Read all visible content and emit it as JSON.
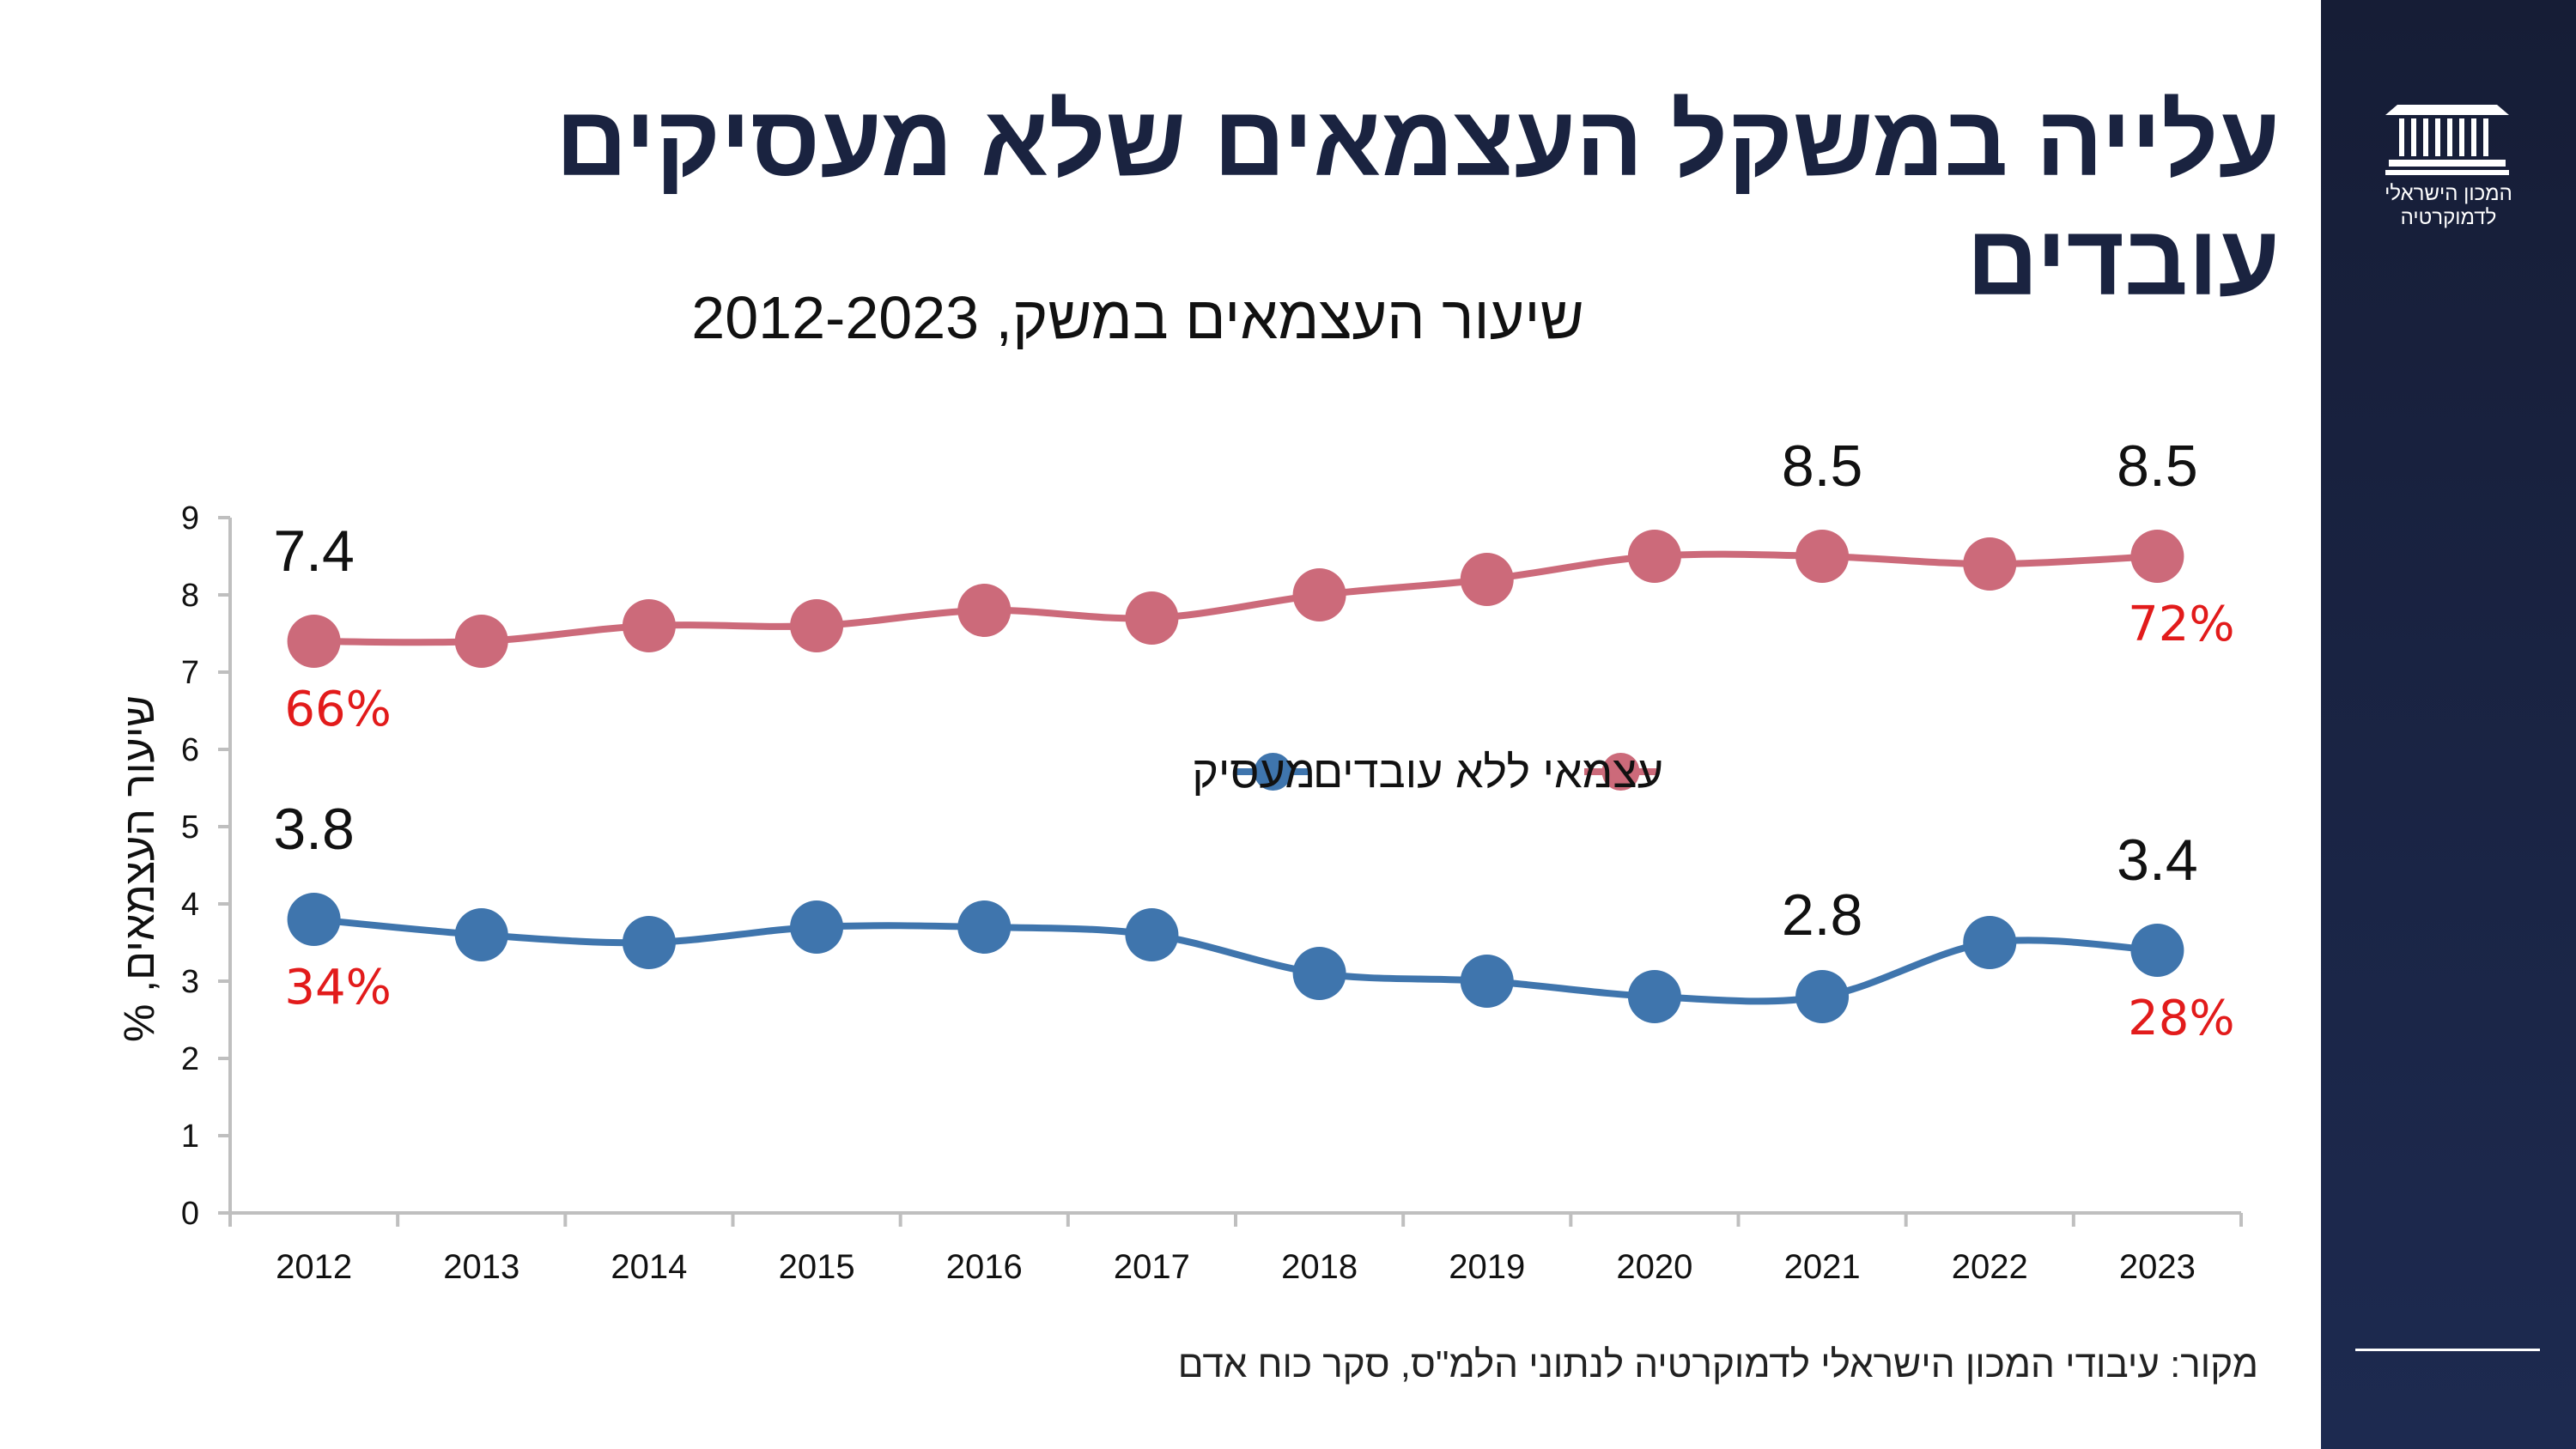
{
  "slide": {
    "title": "עלייה במשקל העצמאים שלא מעסיקים עובדים",
    "source": "מקור: עיבודי המכון הישראלי לדמוקרטיה לנתוני הלמ\"ס, סקר כוח אדם"
  },
  "logo": {
    "text_line1": "המכון הישראלי",
    "text_line2": "לדמוקרטיה",
    "icon": "building-columns-icon"
  },
  "colors": {
    "sidebar": "#1a2344",
    "title": "#1a2340",
    "series_employer": "#3f75ad",
    "series_self_employed": "#cc6a7a",
    "share_labels": "#e21b1b"
  },
  "chart_data": {
    "type": "line",
    "title": "שיעור העצמאים במשק, 2012-2023",
    "xlabel": "",
    "ylabel": "שיעור  העצמאים, %",
    "ylim": [
      0,
      9
    ],
    "yticks": [
      "0",
      "1",
      "2",
      "3",
      "4",
      "5",
      "6",
      "7",
      "8",
      "9"
    ],
    "categories": [
      "2012",
      "2013",
      "2014",
      "2015",
      "2016",
      "2017",
      "2018",
      "2019",
      "2020",
      "2021",
      "2022",
      "2023"
    ],
    "grid": false,
    "legend_position": "center",
    "series": [
      {
        "name": "עצמאי ללא עובדים",
        "color": "#cc6a7a",
        "values": [
          7.4,
          7.4,
          7.6,
          7.6,
          7.8,
          7.7,
          8.0,
          8.2,
          8.5,
          8.5,
          8.4,
          8.5
        ],
        "value_labels": [
          {
            "index": 0,
            "text": "7.4"
          },
          {
            "index": 9,
            "text": "8.5"
          },
          {
            "index": 11,
            "text": "8.5"
          }
        ],
        "share_labels": [
          {
            "index": 0,
            "text": "66%"
          },
          {
            "index": 11,
            "text": "72%"
          }
        ]
      },
      {
        "name": "מעסיק",
        "color": "#3f75ad",
        "values": [
          3.8,
          3.6,
          3.5,
          3.7,
          3.7,
          3.6,
          3.1,
          3.0,
          2.8,
          2.8,
          3.5,
          3.4
        ],
        "value_labels": [
          {
            "index": 0,
            "text": "3.8"
          },
          {
            "index": 9,
            "text": "2.8"
          },
          {
            "index": 11,
            "text": "3.4"
          }
        ],
        "share_labels": [
          {
            "index": 0,
            "text": "34%"
          },
          {
            "index": 11,
            "text": "28%"
          }
        ]
      }
    ]
  }
}
